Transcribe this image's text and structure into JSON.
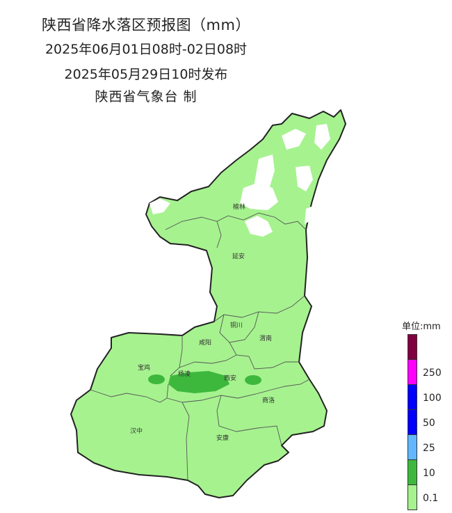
{
  "title": {
    "line1": "陕西省降水落区预报图（mm）",
    "line2": "2025年06月01日08时-02日08时",
    "line3": "2025年05月29日10时发布",
    "line4": "陕西省气象台 制"
  },
  "cities": [
    "榆林",
    "延安",
    "铜川",
    "咸阳",
    "渭南",
    "宝鸡",
    "杨凌",
    "西安",
    "商洛",
    "汉中",
    "安康"
  ],
  "legend": {
    "title": "单位:mm",
    "levels": [
      {
        "color": "#800040",
        "label": ""
      },
      {
        "color": "#ff00ff",
        "label": "250"
      },
      {
        "color": "#0000ff",
        "label": "100"
      },
      {
        "color": "#0000ff",
        "label": "50"
      },
      {
        "color": "#61b8ff",
        "label": "25"
      },
      {
        "color": "#3db83d",
        "label": "10"
      },
      {
        "color": "#a6f28f",
        "label": "0.1"
      }
    ]
  },
  "colors": {
    "light_rain": "#a6f28f",
    "moderate_rain": "#3db83d",
    "no_rain": "#ffffff",
    "border": "#333333"
  }
}
